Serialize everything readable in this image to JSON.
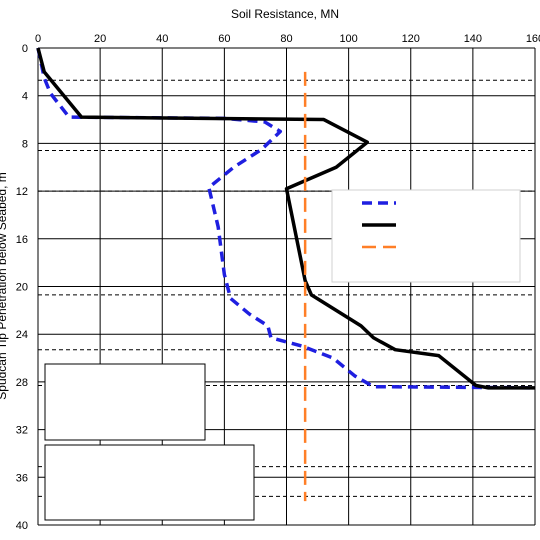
{
  "chart_data": {
    "type": "line",
    "xlabel": "Soil Resistance, MN",
    "ylabel": "Spudcan Tip Penetration below Seabed, m",
    "xlim": [
      0,
      160
    ],
    "ylim": [
      40,
      0
    ],
    "x_ticks": [
      "0",
      "20",
      "40",
      "60",
      "80",
      "100",
      "120",
      "140",
      "160"
    ],
    "y_ticks": [
      "0",
      "4",
      "8",
      "12",
      "16",
      "20",
      "24",
      "28",
      "32",
      "36",
      "40"
    ],
    "x_axis_position": "top",
    "y_axis_inverted": true,
    "grid": true,
    "legend_position": "right",
    "layer_boundaries_depth": [
      2.7,
      8.6,
      12.0,
      20.7,
      25.3,
      28.3,
      35.1,
      37.6
    ],
    "series": [
      {
        "style": "dashed",
        "color": "#1f1fe0",
        "points": [
          {
            "x": 0,
            "y": 0
          },
          {
            "x": 2,
            "y": 2.5
          },
          {
            "x": 4,
            "y": 3.8
          },
          {
            "x": 10,
            "y": 5.8
          },
          {
            "x": 60,
            "y": 5.9
          },
          {
            "x": 73,
            "y": 6.2
          },
          {
            "x": 78,
            "y": 7.0
          },
          {
            "x": 72,
            "y": 8.5
          },
          {
            "x": 63,
            "y": 10.0
          },
          {
            "x": 55,
            "y": 11.7
          },
          {
            "x": 58,
            "y": 15.0
          },
          {
            "x": 60,
            "y": 19.0
          },
          {
            "x": 62,
            "y": 21.0
          },
          {
            "x": 68,
            "y": 22.3
          },
          {
            "x": 74,
            "y": 23.3
          },
          {
            "x": 75,
            "y": 24.3
          },
          {
            "x": 85,
            "y": 25.0
          },
          {
            "x": 95,
            "y": 26.0
          },
          {
            "x": 102,
            "y": 27.5
          },
          {
            "x": 108,
            "y": 28.4
          },
          {
            "x": 160,
            "y": 28.5
          }
        ]
      },
      {
        "style": "solid",
        "color": "#000000",
        "points": [
          {
            "x": 0,
            "y": 0
          },
          {
            "x": 2,
            "y": 2.0
          },
          {
            "x": 14,
            "y": 5.8
          },
          {
            "x": 92,
            "y": 6.0
          },
          {
            "x": 106,
            "y": 7.9
          },
          {
            "x": 96,
            "y": 10.0
          },
          {
            "x": 80,
            "y": 11.8
          },
          {
            "x": 86,
            "y": 19.5
          },
          {
            "x": 88,
            "y": 20.7
          },
          {
            "x": 96,
            "y": 22.0
          },
          {
            "x": 104,
            "y": 23.3
          },
          {
            "x": 108,
            "y": 24.3
          },
          {
            "x": 115,
            "y": 25.3
          },
          {
            "x": 129,
            "y": 25.8
          },
          {
            "x": 141,
            "y": 28.3
          },
          {
            "x": 145,
            "y": 28.5
          },
          {
            "x": 160,
            "y": 28.5
          }
        ]
      },
      {
        "style": "dashed-long",
        "color": "#ff7f27",
        "points": [
          {
            "x": 86,
            "y": 2.0
          },
          {
            "x": 86,
            "y": 38.0
          }
        ]
      }
    ]
  }
}
